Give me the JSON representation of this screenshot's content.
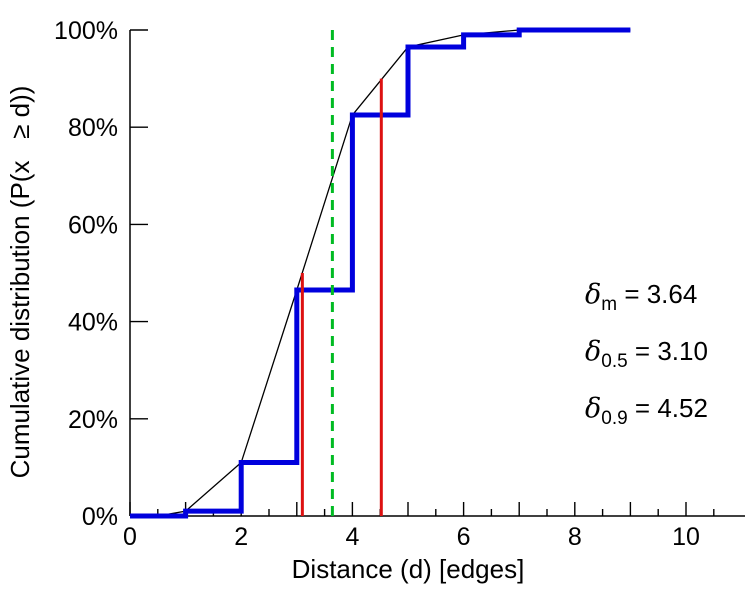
{
  "chart_data": {
    "type": "line",
    "title": "",
    "xlabel": "Distance (d) [edges]",
    "ylabel": "Cumulative distribution (P(x   ≥ d))",
    "xlim": [
      0,
      11
    ],
    "ylim": [
      0,
      100
    ],
    "x_ticks": [
      0,
      2,
      4,
      6,
      8,
      10
    ],
    "y_ticks": [
      0,
      20,
      40,
      60,
      80,
      100
    ],
    "y_tick_labels": [
      "0%",
      "20%",
      "40%",
      "60%",
      "80%",
      "100%"
    ],
    "grid": false,
    "legend": false,
    "series": [
      {
        "name": "empirical-cdf-steps",
        "type": "step",
        "color": "#0000dd",
        "x": [
          0,
          1,
          2,
          3,
          4,
          5,
          6,
          7,
          9
        ],
        "y": [
          0,
          1,
          11,
          46.5,
          82.5,
          96.5,
          99,
          100,
          100
        ]
      },
      {
        "name": "interpolated-cdf",
        "type": "line",
        "color": "#000000",
        "x": [
          0.5,
          1,
          2,
          3,
          4,
          5,
          6,
          7,
          9
        ],
        "y": [
          0,
          1,
          11,
          46.5,
          82.5,
          96.5,
          99,
          100,
          100
        ]
      }
    ],
    "vlines": [
      {
        "name": "median-marker",
        "x": 3.1,
        "y0": 0,
        "y1": 50,
        "color": "#dd1111",
        "style": "solid"
      },
      {
        "name": "p90-marker",
        "x": 4.52,
        "y0": 0,
        "y1": 90,
        "color": "#dd1111",
        "style": "solid"
      },
      {
        "name": "mean-marker",
        "x": 3.64,
        "y0": 0,
        "y1": 100,
        "color": "#00bb22",
        "style": "dashed"
      }
    ],
    "annotations": [
      {
        "symbol": "δ",
        "sub": "m",
        "value": " = 3.64"
      },
      {
        "symbol": "δ",
        "sub": "0.5",
        "value": " = 3.10"
      },
      {
        "symbol": "δ",
        "sub": "0.9",
        "value": " = 4.52"
      }
    ]
  }
}
